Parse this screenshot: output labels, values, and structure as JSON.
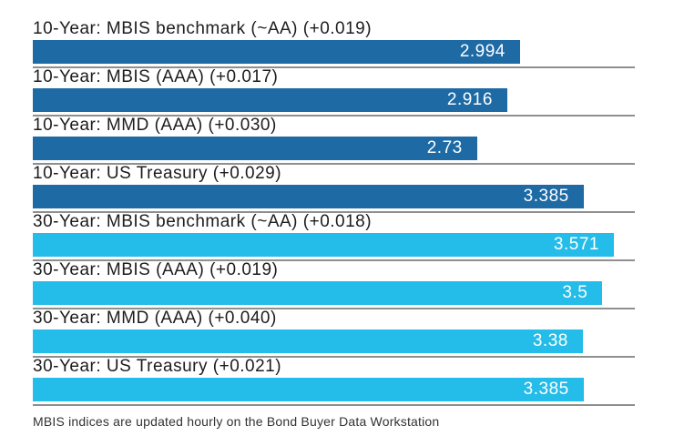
{
  "chart_data": {
    "type": "bar",
    "orientation": "horizontal",
    "title": "",
    "xlabel": "",
    "ylabel": "",
    "x_axis": {
      "min": 0,
      "max": 3.7,
      "visible": false
    },
    "grid": false,
    "legend": false,
    "value_labels_position": "inside-right",
    "palette": {
      "ten_year_bar": "#1E6AA5",
      "thirty_year_bar": "#24BCE9",
      "separator": "#8F8F8F",
      "label_text": "#1D1D1D",
      "value_text": "#FFFFFF"
    },
    "categories": [
      "10-Year: MBIS benchmark (~AA) (+0.019)",
      "10-Year: MBIS (AAA) (+0.017)",
      "10-Year: MMD (AAA) (+0.030)",
      "10-Year: US Treasury (+0.029)",
      "30-Year: MBIS benchmark (~AA) (+0.018)",
      "30-Year: MBIS (AAA) (+0.019)",
      "30-Year: MMD (AAA) (+0.040)",
      "30-Year: US Treasury (+0.021)"
    ],
    "values": [
      2.994,
      2.916,
      2.73,
      3.385,
      3.571,
      3.5,
      3.38,
      3.385
    ],
    "bars": [
      {
        "label": "10-Year: MBIS benchmark (~AA) (+0.019)",
        "value": 2.994,
        "display_value": "2.994",
        "change": "+0.019",
        "series": "10-Year",
        "color": "#1E6AA5"
      },
      {
        "label": "10-Year: MBIS (AAA) (+0.017)",
        "value": 2.916,
        "display_value": "2.916",
        "change": "+0.017",
        "series": "10-Year",
        "color": "#1E6AA5"
      },
      {
        "label": "10-Year: MMD (AAA) (+0.030)",
        "value": 2.73,
        "display_value": "2.73",
        "change": "+0.030",
        "series": "10-Year",
        "color": "#1E6AA5"
      },
      {
        "label": "10-Year: US Treasury (+0.029)",
        "value": 3.385,
        "display_value": "3.385",
        "change": "+0.029",
        "series": "10-Year",
        "color": "#1E6AA5"
      },
      {
        "label": "30-Year: MBIS benchmark (~AA) (+0.018)",
        "value": 3.571,
        "display_value": "3.571",
        "change": "+0.018",
        "series": "30-Year",
        "color": "#24BCE9"
      },
      {
        "label": "30-Year: MBIS (AAA) (+0.019)",
        "value": 3.5,
        "display_value": "3.5",
        "change": "+0.019",
        "series": "30-Year",
        "color": "#24BCE9"
      },
      {
        "label": "30-Year: MMD (AAA) (+0.040)",
        "value": 3.38,
        "display_value": "3.38",
        "change": "+0.040",
        "series": "30-Year",
        "color": "#24BCE9"
      },
      {
        "label": "30-Year: US Treasury (+0.021)",
        "value": 3.385,
        "display_value": "3.385",
        "change": "+0.021",
        "series": "30-Year",
        "color": "#24BCE9"
      }
    ]
  },
  "footer": {
    "note": "MBIS indices are updated hourly on the Bond Buyer Data Workstation"
  }
}
